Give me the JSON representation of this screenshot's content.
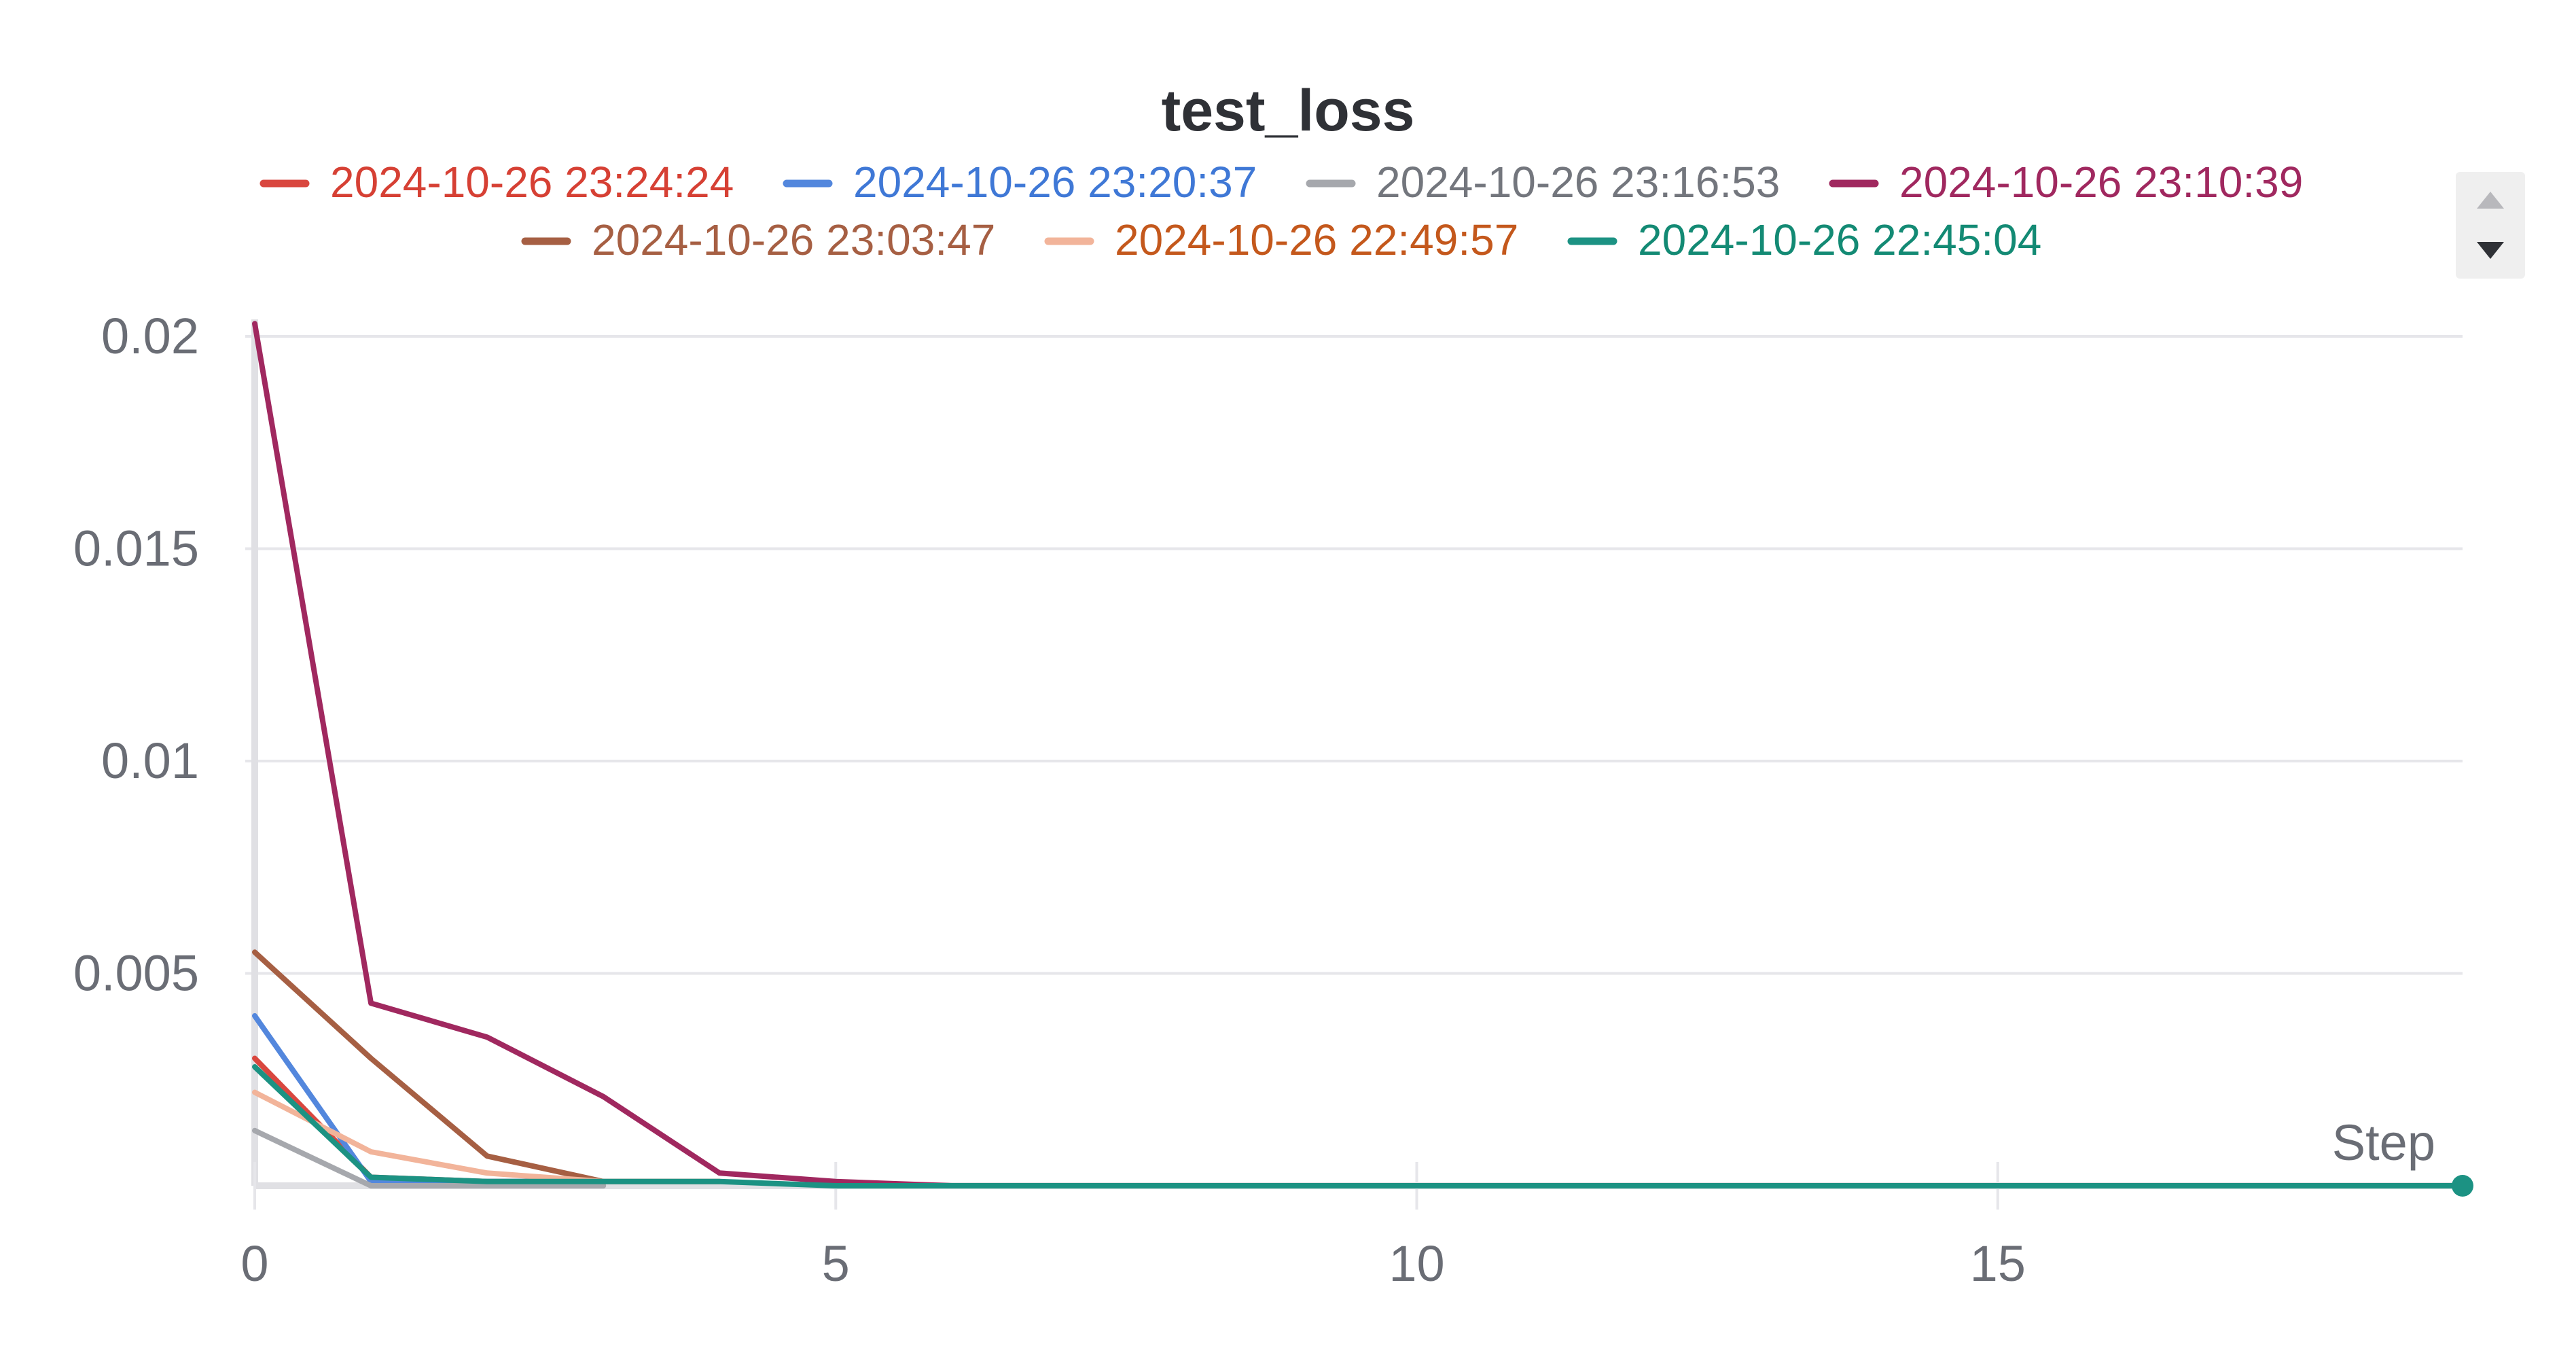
{
  "chart_data": {
    "type": "line",
    "title": "test_loss",
    "xlabel": "Step",
    "ylabel": "",
    "xlim": [
      0,
      19
    ],
    "ylim": [
      0,
      0.02
    ],
    "x_ticks": [
      0,
      5,
      10,
      15
    ],
    "x_tick_labels": [
      "0",
      "5",
      "10",
      "15"
    ],
    "y_ticks": [
      0.005,
      0.01,
      0.015,
      0.02
    ],
    "y_tick_labels": [
      "0.005",
      "0.01",
      "0.015",
      "0.02"
    ],
    "grid": true,
    "legend_position": "top",
    "series": [
      {
        "name": "2024-10-26 23:24:24",
        "color": "#d9473f",
        "legend_text_color": "#d64034",
        "x": [
          0,
          1,
          2,
          3
        ],
        "y": [
          0.003,
          0.0002,
          0.0001,
          0.0001
        ]
      },
      {
        "name": "2024-10-26 23:20:37",
        "color": "#5387dd",
        "legend_text_color": "#3f78d6",
        "x": [
          0,
          1,
          2,
          3
        ],
        "y": [
          0.004,
          0.0001,
          0.0001,
          0.0001
        ]
      },
      {
        "name": "2024-10-26 23:16:53",
        "color": "#a6a8ad",
        "legend_text_color": "#73767d",
        "x": [
          0,
          1,
          2,
          3
        ],
        "y": [
          0.0013,
          0.0,
          0.0,
          0.0
        ]
      },
      {
        "name": "2024-10-26 23:10:39",
        "color": "#a0285f",
        "legend_text_color": "#a0285f",
        "x": [
          0,
          1,
          2,
          3,
          4,
          5,
          6,
          7,
          8,
          9,
          10,
          11,
          12,
          13,
          14,
          15,
          16,
          17,
          18,
          19
        ],
        "y": [
          0.0203,
          0.0043,
          0.0035,
          0.0021,
          0.0003,
          0.0001,
          0.0,
          0.0,
          0.0,
          0.0,
          0.0,
          0.0,
          0.0,
          0.0,
          0.0,
          0.0,
          0.0,
          0.0,
          0.0,
          0.0
        ]
      },
      {
        "name": "2024-10-26 23:03:47",
        "color": "#a65f43",
        "legend_text_color": "#a65f43",
        "x": [
          0,
          1,
          2,
          3,
          4
        ],
        "y": [
          0.0055,
          0.003,
          0.0007,
          0.0001,
          0.0001
        ]
      },
      {
        "name": "2024-10-26 22:49:57",
        "color": "#f2b49a",
        "legend_text_color": "#c4581c",
        "x": [
          0,
          1,
          2,
          3
        ],
        "y": [
          0.0022,
          0.0008,
          0.0003,
          0.0001
        ]
      },
      {
        "name": "2024-10-26 22:45:04",
        "color": "#1c9283",
        "legend_text_color": "#138a74",
        "x": [
          0,
          1,
          2,
          3,
          4,
          5,
          19
        ],
        "y": [
          0.0028,
          0.0002,
          0.0001,
          0.0001,
          0.0001,
          0.0,
          0.0
        ]
      }
    ]
  },
  "legend": {
    "scroll_up_icon": "triangle-up-icon",
    "scroll_down_icon": "triangle-down-icon"
  }
}
